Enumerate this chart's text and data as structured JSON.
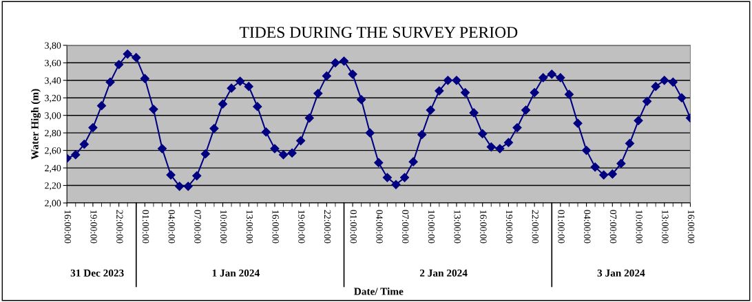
{
  "chart_data": {
    "type": "line",
    "title": "TIDES DURING THE SURVEY PERIOD",
    "xlabel": "Date/ Time",
    "ylabel": "Water High (m)",
    "x": [
      "2023-12-31T16:00",
      "2023-12-31T17:00",
      "2023-12-31T18:00",
      "2023-12-31T19:00",
      "2023-12-31T20:00",
      "2023-12-31T21:00",
      "2023-12-31T22:00",
      "2023-12-31T23:00",
      "2024-01-01T00:00",
      "2024-01-01T01:00",
      "2024-01-01T02:00",
      "2024-01-01T03:00",
      "2024-01-01T04:00",
      "2024-01-01T05:00",
      "2024-01-01T06:00",
      "2024-01-01T07:00",
      "2024-01-01T08:00",
      "2024-01-01T09:00",
      "2024-01-01T10:00",
      "2024-01-01T11:00",
      "2024-01-01T12:00",
      "2024-01-01T13:00",
      "2024-01-01T14:00",
      "2024-01-01T15:00",
      "2024-01-01T16:00",
      "2024-01-01T17:00",
      "2024-01-01T18:00",
      "2024-01-01T19:00",
      "2024-01-01T20:00",
      "2024-01-01T21:00",
      "2024-01-01T22:00",
      "2024-01-01T23:00",
      "2024-01-02T00:00",
      "2024-01-02T01:00",
      "2024-01-02T02:00",
      "2024-01-02T03:00",
      "2024-01-02T04:00",
      "2024-01-02T05:00",
      "2024-01-02T06:00",
      "2024-01-02T07:00",
      "2024-01-02T08:00",
      "2024-01-02T09:00",
      "2024-01-02T10:00",
      "2024-01-02T11:00",
      "2024-01-02T12:00",
      "2024-01-02T13:00",
      "2024-01-02T14:00",
      "2024-01-02T15:00",
      "2024-01-02T16:00",
      "2024-01-02T17:00",
      "2024-01-02T18:00",
      "2024-01-02T19:00",
      "2024-01-02T20:00",
      "2024-01-02T21:00",
      "2024-01-02T22:00",
      "2024-01-02T23:00",
      "2024-01-03T00:00",
      "2024-01-03T01:00",
      "2024-01-03T02:00",
      "2024-01-03T03:00",
      "2024-01-03T04:00",
      "2024-01-03T05:00",
      "2024-01-03T06:00",
      "2024-01-03T07:00",
      "2024-01-03T08:00",
      "2024-01-03T09:00",
      "2024-01-03T10:00",
      "2024-01-03T11:00",
      "2024-01-03T12:00",
      "2024-01-03T13:00",
      "2024-01-03T14:00",
      "2024-01-03T15:00",
      "2024-01-03T16:00"
    ],
    "series": [
      {
        "color": "#000080",
        "values": [
          2.51,
          2.55,
          2.67,
          2.86,
          3.11,
          3.38,
          3.58,
          3.7,
          3.66,
          3.42,
          3.07,
          2.62,
          2.32,
          2.19,
          2.19,
          2.31,
          2.56,
          2.85,
          3.13,
          3.31,
          3.39,
          3.33,
          3.1,
          2.81,
          2.62,
          2.55,
          2.57,
          2.71,
          2.97,
          3.25,
          3.45,
          3.6,
          3.62,
          3.47,
          3.18,
          2.8,
          2.46,
          2.29,
          2.21,
          2.29,
          2.47,
          2.78,
          3.06,
          3.28,
          3.4,
          3.4,
          3.26,
          3.03,
          2.79,
          2.64,
          2.62,
          2.69,
          2.86,
          3.06,
          3.26,
          3.43,
          3.47,
          3.43,
          3.24,
          2.91,
          2.6,
          2.41,
          2.32,
          2.33,
          2.45,
          2.68,
          2.94,
          3.16,
          3.33,
          3.4,
          3.38,
          3.2,
          2.97
        ]
      }
    ],
    "marker": "diamond",
    "line_style": "solid",
    "grid": "y",
    "legend": false,
    "xlim": [
      "2023-12-31T16:00",
      "2024-01-03T16:00"
    ],
    "xticks": [
      {
        "value": "2023-12-31T16:00",
        "label": "16:00:00"
      },
      {
        "value": "2023-12-31T19:00",
        "label": "19:00:00"
      },
      {
        "value": "2023-12-31T22:00",
        "label": "22:00:00"
      },
      {
        "value": "2024-01-01T01:00",
        "label": "01:00:00"
      },
      {
        "value": "2024-01-01T04:00",
        "label": "04:00:00"
      },
      {
        "value": "2024-01-01T07:00",
        "label": "07:00:00"
      },
      {
        "value": "2024-01-01T10:00",
        "label": "10:00:00"
      },
      {
        "value": "2024-01-01T13:00",
        "label": "13:00:00"
      },
      {
        "value": "2024-01-01T16:00",
        "label": "16:00:00"
      },
      {
        "value": "2024-01-01T19:00",
        "label": "19:00:00"
      },
      {
        "value": "2024-01-01T22:00",
        "label": "22:00:00"
      },
      {
        "value": "2024-01-02T01:00",
        "label": "01:00:00"
      },
      {
        "value": "2024-01-02T04:00",
        "label": "04:00:00"
      },
      {
        "value": "2024-01-02T07:00",
        "label": "07:00:00"
      },
      {
        "value": "2024-01-02T10:00",
        "label": "10:00:00"
      },
      {
        "value": "2024-01-02T13:00",
        "label": "13:00:00"
      },
      {
        "value": "2024-01-02T16:00",
        "label": "16:00:00"
      },
      {
        "value": "2024-01-02T19:00",
        "label": "19:00:00"
      },
      {
        "value": "2024-01-02T22:00",
        "label": "22:00:00"
      },
      {
        "value": "2024-01-03T01:00",
        "label": "01:00:00"
      },
      {
        "value": "2024-01-03T04:00",
        "label": "04:00:00"
      },
      {
        "value": "2024-01-03T07:00",
        "label": "07:00:00"
      },
      {
        "value": "2024-01-03T10:00",
        "label": "10:00:00"
      },
      {
        "value": "2024-01-03T13:00",
        "label": "13:00:00"
      },
      {
        "value": "2024-01-03T16:00",
        "label": "16:00:00"
      }
    ],
    "ylim": [
      2.0,
      3.8
    ],
    "yticks": [
      {
        "value": 2.0,
        "label": "2,00"
      },
      {
        "value": 2.2,
        "label": "2,20"
      },
      {
        "value": 2.4,
        "label": "2,40"
      },
      {
        "value": 2.6,
        "label": "2,60"
      },
      {
        "value": 2.8,
        "label": "2,80"
      },
      {
        "value": 3.0,
        "label": "3,00"
      },
      {
        "value": 3.2,
        "label": "3,20"
      },
      {
        "value": 3.4,
        "label": "3,40"
      },
      {
        "value": 3.6,
        "label": "3,60"
      },
      {
        "value": 3.8,
        "label": "3,80"
      }
    ],
    "annotations": [
      "31 Dec 2023",
      "1 Jan 2024",
      "2 Jan 2024",
      "3 Jan 2024"
    ]
  }
}
